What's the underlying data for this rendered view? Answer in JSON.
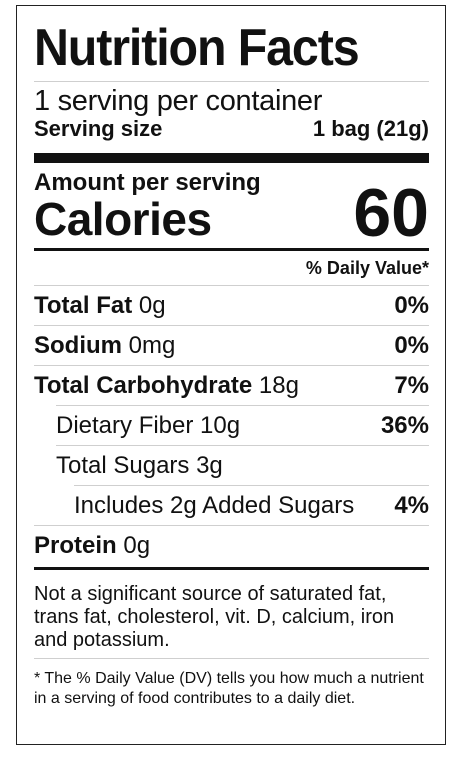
{
  "title": "Nutrition Facts",
  "servings_per_container": "1 serving per container",
  "serving_size_label": "Serving size",
  "serving_size_value": "1 bag (21g)",
  "amount_per_serving": "Amount per serving",
  "calories_label": "Calories",
  "calories_value": "60",
  "daily_value_header": "% Daily Value*",
  "nutrients": [
    {
      "name": "Total Fat",
      "amount": "0g",
      "dv": "0%"
    },
    {
      "name": "Sodium",
      "amount": "0mg",
      "dv": "0%"
    },
    {
      "name": "Total Carbohydrate",
      "amount": "18g",
      "dv": "7%"
    },
    {
      "name": "Dietary Fiber 10g",
      "dv": "36%"
    },
    {
      "name": "Total Sugars 3g",
      "dv": ""
    },
    {
      "name": "Includes 2g Added Sugars",
      "dv": "4%"
    },
    {
      "name": "Protein",
      "amount": "0g"
    }
  ],
  "not_significant": "Not a significant source of saturated fat, trans fat, cholesterol, vit. D, calcium, iron and potassium.",
  "footnote": "* The % Daily Value (DV) tells you how much a nutrient in a serving of food contributes to a daily diet."
}
